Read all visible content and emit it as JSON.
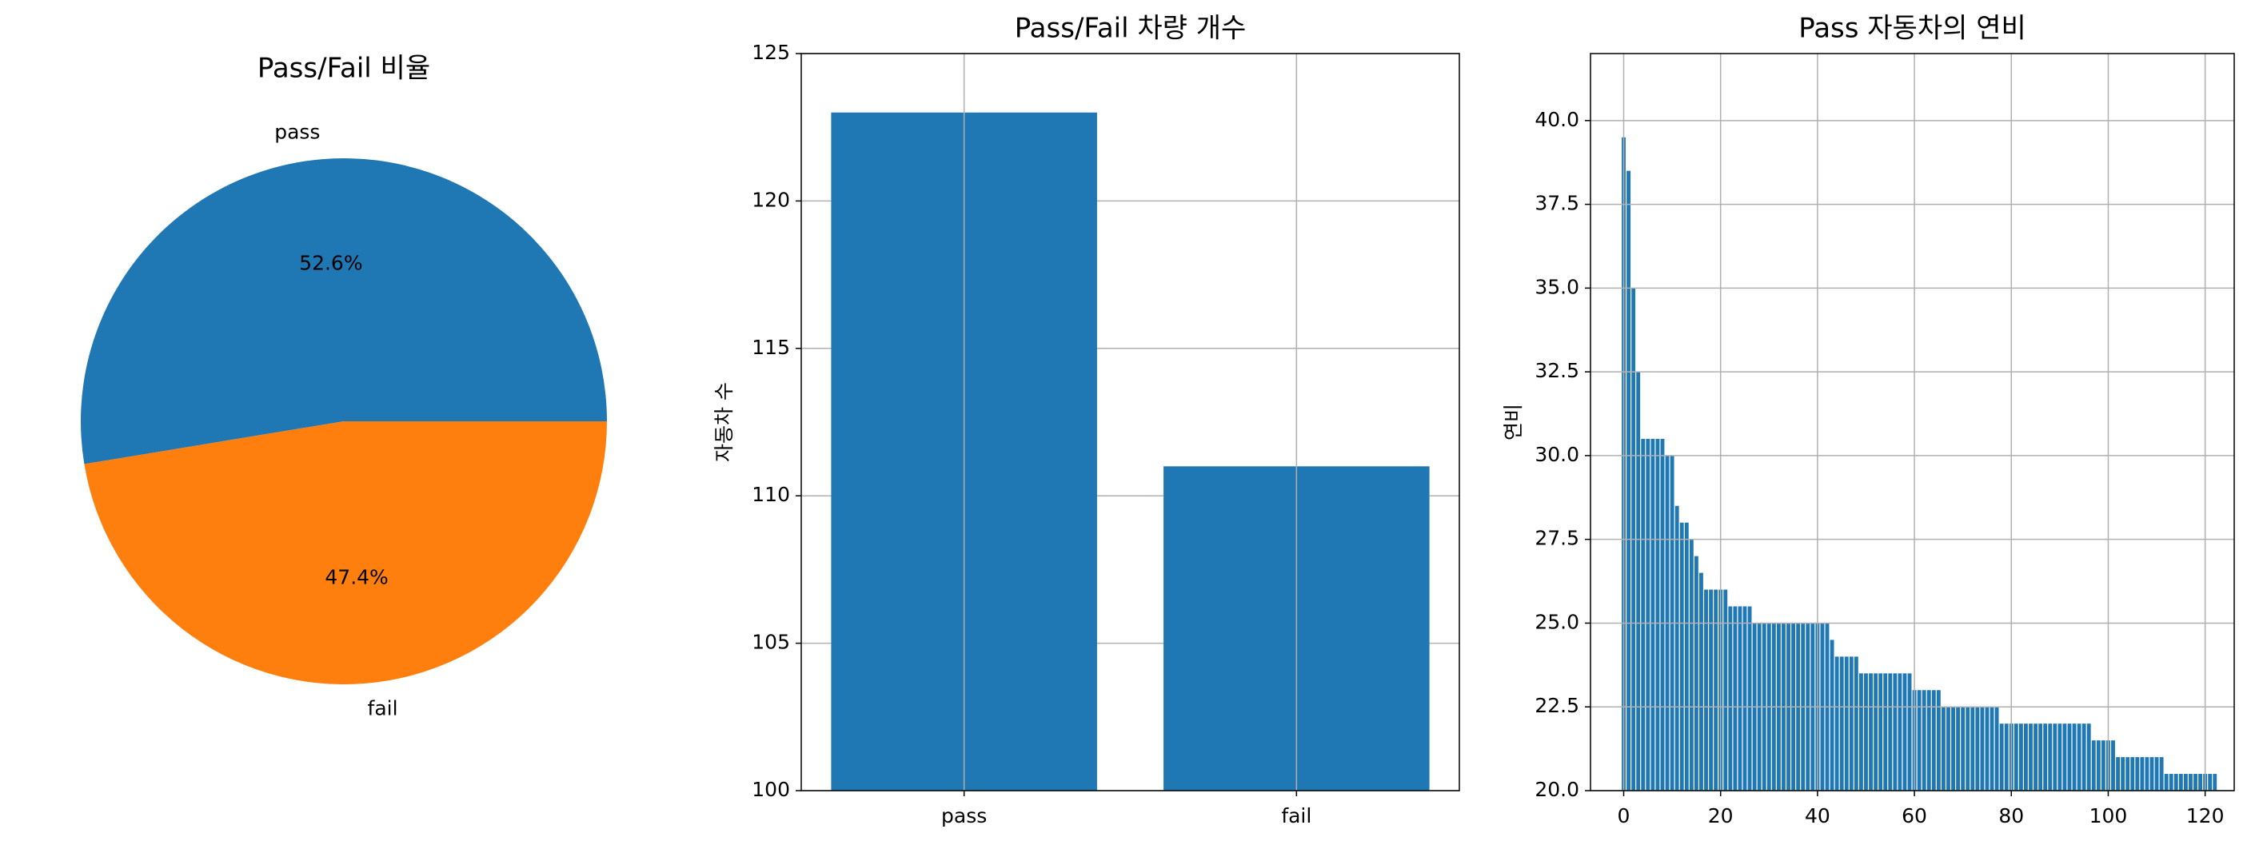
{
  "chart_data": [
    {
      "type": "pie",
      "title": "Pass/Fail 비율",
      "categories": [
        "pass",
        "fail"
      ],
      "values": [
        52.6,
        47.4
      ],
      "value_labels": [
        "52.6%",
        "47.4%"
      ],
      "colors": [
        "#1f77b4",
        "#ff7f0e"
      ]
    },
    {
      "type": "bar",
      "title": "Pass/Fail 차량 개수",
      "y_label": "자동차 수",
      "categories": [
        "pass",
        "fail"
      ],
      "values": [
        123,
        111
      ],
      "color": "#1f77b4",
      "ylim": [
        100,
        125
      ],
      "yticks": [
        100,
        105,
        110,
        115,
        120,
        125
      ],
      "grid": true
    },
    {
      "type": "indexbar",
      "title": "Pass 자동차의 연비",
      "y_label": "연비",
      "color": "#1f77b4",
      "grid": true,
      "x": [
        0,
        1,
        2,
        3,
        4,
        5,
        6,
        7,
        8,
        9,
        10,
        11,
        12,
        13,
        14,
        15,
        16,
        17,
        18,
        19,
        20,
        21,
        22,
        23,
        24,
        25,
        26,
        27,
        28,
        29,
        30,
        31,
        32,
        33,
        34,
        35,
        36,
        37,
        38,
        39,
        40,
        41,
        42,
        43,
        44,
        45,
        46,
        47,
        48,
        49,
        50,
        51,
        52,
        53,
        54,
        55,
        56,
        57,
        58,
        59,
        60,
        61,
        62,
        63,
        64,
        65,
        66,
        67,
        68,
        69,
        70,
        71,
        72,
        73,
        74,
        75,
        76,
        77,
        78,
        79,
        80,
        81,
        82,
        83,
        84,
        85,
        86,
        87,
        88,
        89,
        90,
        91,
        92,
        93,
        94,
        95,
        96,
        97,
        98,
        99,
        100,
        101,
        102,
        103,
        104,
        105,
        106,
        107,
        108,
        109,
        110,
        111,
        112,
        113,
        114,
        115,
        116,
        117,
        118,
        119,
        120,
        121,
        122
      ],
      "values": [
        39.5,
        38.5,
        35,
        32.5,
        30.5,
        30.5,
        30.5,
        30.5,
        30.5,
        30,
        30,
        28.5,
        28,
        28,
        27.5,
        27,
        26.5,
        26,
        26,
        26,
        26,
        26,
        25.5,
        25.5,
        25.5,
        25.5,
        25.5,
        25,
        25,
        25,
        25,
        25,
        25,
        25,
        25,
        25,
        25,
        25,
        25,
        25,
        25,
        25,
        25,
        24.5,
        24,
        24,
        24,
        24,
        24,
        23.5,
        23.5,
        23.5,
        23.5,
        23.5,
        23.5,
        23.5,
        23.5,
        23.5,
        23.5,
        23.5,
        23,
        23,
        23,
        23,
        23,
        23,
        22.5,
        22.5,
        22.5,
        22.5,
        22.5,
        22.5,
        22.5,
        22.5,
        22.5,
        22.5,
        22.5,
        22.5,
        22,
        22,
        22,
        22,
        22,
        22,
        22,
        22,
        22,
        22,
        22,
        22,
        22,
        22,
        22,
        22,
        22,
        22,
        22,
        21.5,
        21.5,
        21.5,
        21.5,
        21.5,
        21,
        21,
        21,
        21,
        21,
        21,
        21,
        21,
        21,
        21,
        20.5,
        20.5,
        20.5,
        20.5,
        20.5,
        20.5,
        20.5,
        20.5,
        20.5,
        20.5,
        20.5
      ],
      "xlim": [
        -6.85,
        126
      ],
      "xticks": [
        0,
        20,
        40,
        60,
        80,
        100,
        120
      ],
      "ylim": [
        20,
        42
      ],
      "yticks": [
        {
          "value": 20,
          "label": "20.0"
        },
        {
          "value": 22.5,
          "label": "22.5"
        },
        {
          "value": 25,
          "label": "25.0"
        },
        {
          "value": 27.5,
          "label": "27.5"
        },
        {
          "value": 30,
          "label": "30.0"
        },
        {
          "value": 32.5,
          "label": "32.5"
        },
        {
          "value": 35,
          "label": "35.0"
        },
        {
          "value": 37.5,
          "label": "37.5"
        },
        {
          "value": 40,
          "label": "40.0"
        }
      ]
    }
  ]
}
